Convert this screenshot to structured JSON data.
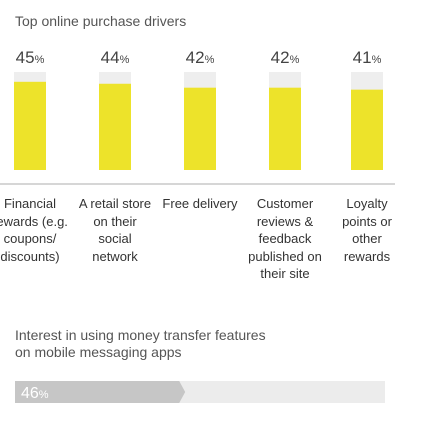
{
  "chart_data": [
    {
      "type": "bar",
      "title": "Top online purchase drivers",
      "categories": [
        "Financial rewards (e.g. coupons/ discounts)",
        "A retail store on their social network",
        "Free delivery",
        "Customer reviews & feedback published on their site",
        "Loyalty points or other rewards"
      ],
      "values": [
        45,
        44,
        42,
        42,
        41
      ],
      "value_labels": [
        "45%",
        "44%",
        "42%",
        "42%",
        "41%"
      ],
      "color": "#ede32a",
      "track_color": "#eeeeee",
      "ylim": [
        0,
        50
      ]
    },
    {
      "type": "progress",
      "title": "Interest in using money  transfer features on mobile messaging apps",
      "values": [
        46
      ],
      "value_labels": [
        "46%"
      ],
      "color": "#c6c6c6",
      "track_color": "#ececec",
      "xlim": [
        0,
        100
      ]
    }
  ]
}
